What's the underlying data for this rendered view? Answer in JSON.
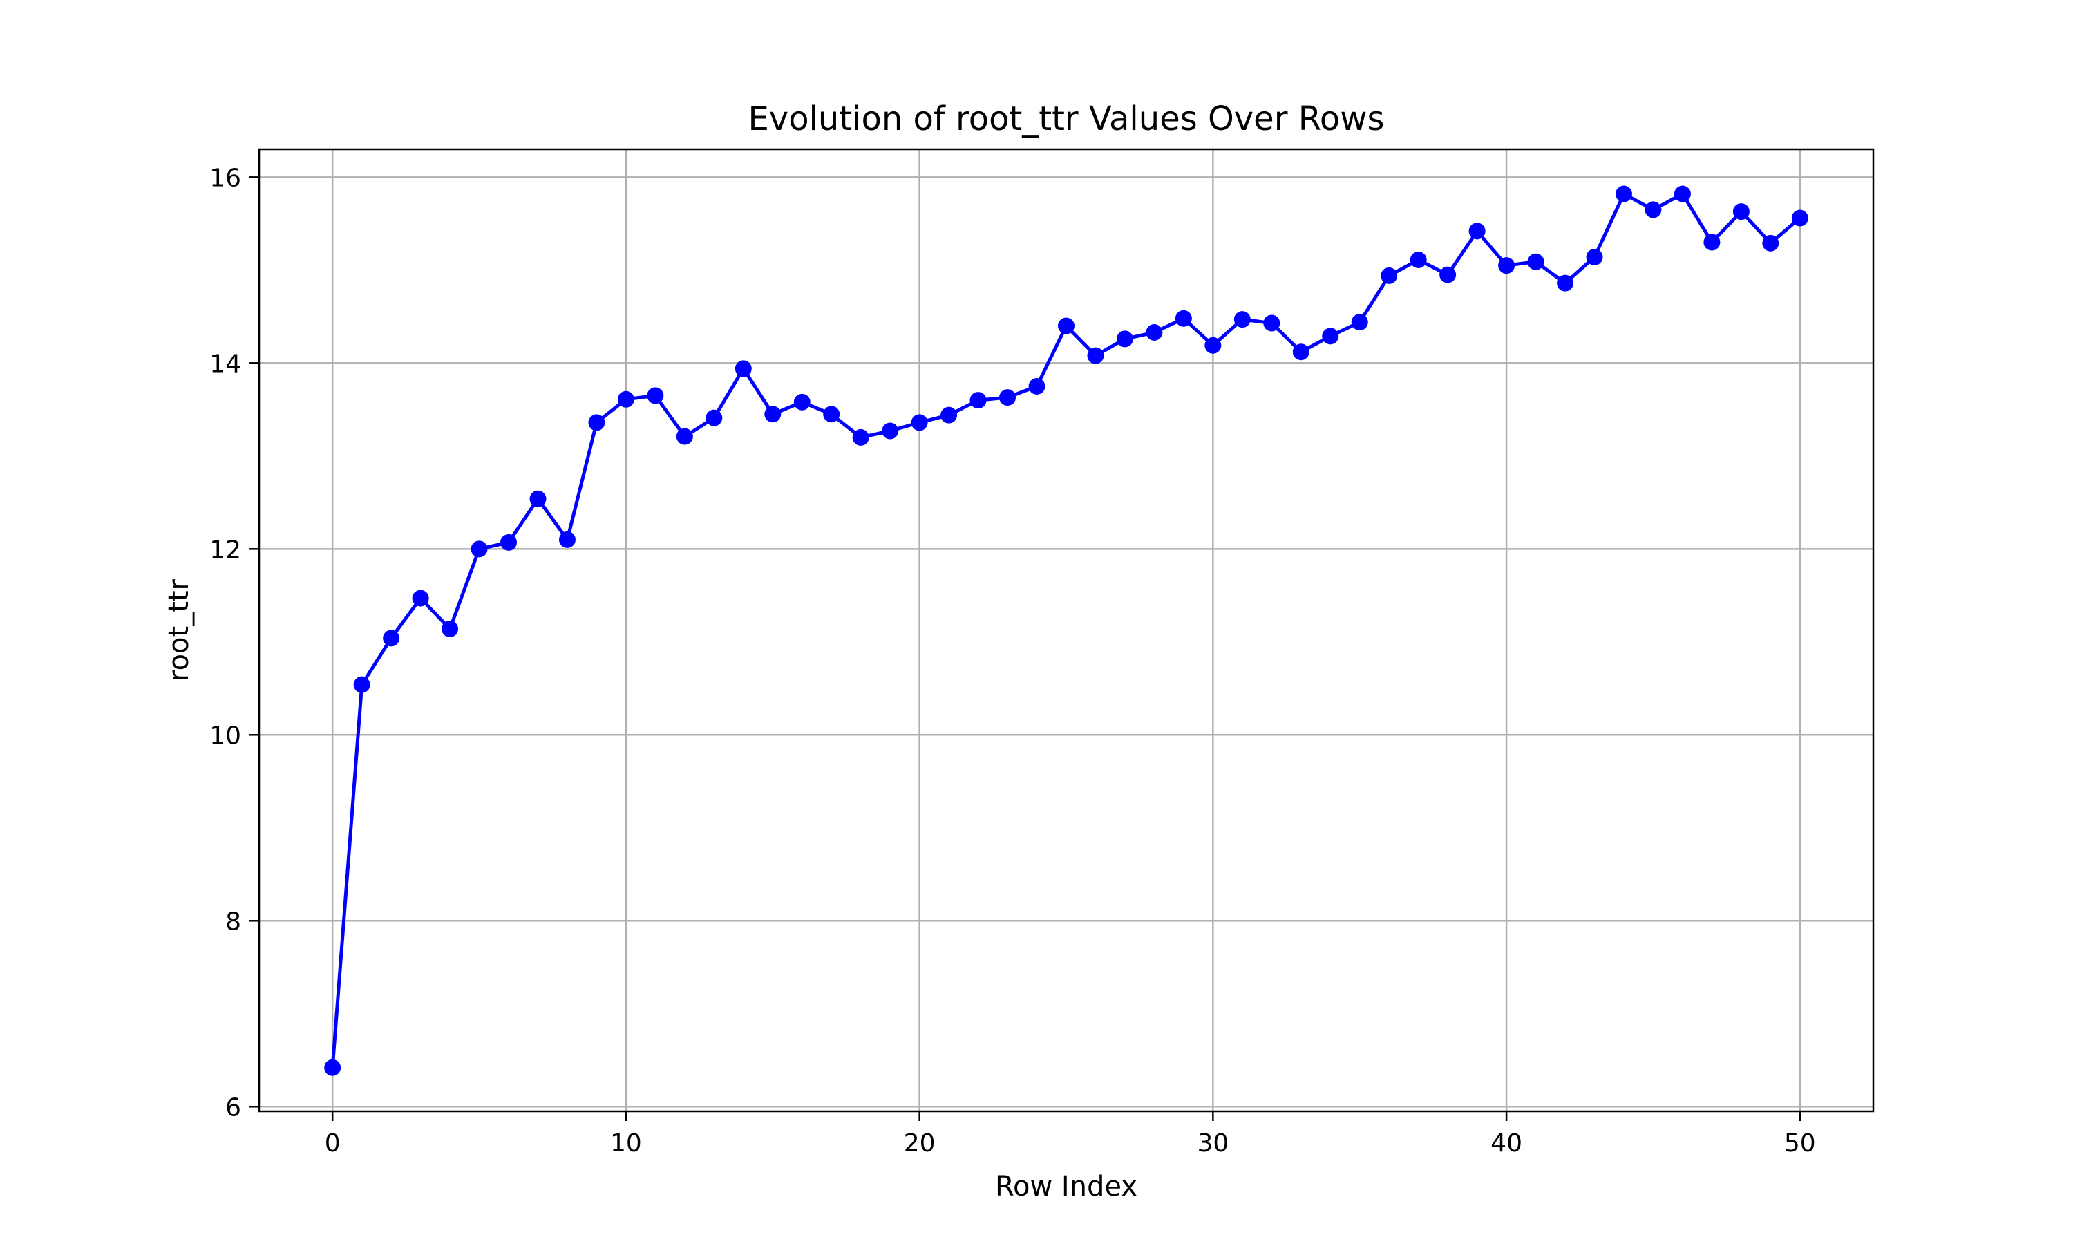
{
  "chart_data": {
    "type": "line",
    "title": "Evolution of root_ttr Values Over Rows",
    "xlabel": "Row Index",
    "ylabel": "root_ttr",
    "xlim": [
      -2.5,
      52.5
    ],
    "ylim": [
      5.95,
      16.3
    ],
    "xticks": [
      0,
      10,
      20,
      30,
      40,
      50
    ],
    "yticks": [
      6,
      8,
      10,
      12,
      14,
      16
    ],
    "grid": true,
    "marker": "circle",
    "color": "#0000ff",
    "x": [
      0,
      1,
      2,
      3,
      4,
      5,
      6,
      7,
      8,
      9,
      10,
      11,
      12,
      13,
      14,
      15,
      16,
      17,
      18,
      19,
      20,
      21,
      22,
      23,
      24,
      25,
      26,
      27,
      28,
      29,
      30,
      31,
      32,
      33,
      34,
      35,
      36,
      37,
      38,
      39,
      40,
      41,
      42,
      43,
      44,
      45,
      46,
      47,
      48,
      49,
      50
    ],
    "y": [
      6.42,
      10.54,
      11.04,
      11.47,
      11.14,
      12.0,
      12.07,
      12.54,
      12.1,
      13.36,
      13.61,
      13.65,
      13.21,
      13.41,
      13.94,
      13.45,
      13.58,
      13.45,
      13.2,
      13.27,
      13.36,
      13.44,
      13.6,
      13.63,
      13.75,
      14.4,
      14.08,
      14.26,
      14.33,
      14.48,
      14.19,
      14.47,
      14.43,
      14.12,
      14.29,
      14.44,
      14.94,
      15.11,
      14.95,
      15.42,
      15.05,
      15.09,
      14.86,
      15.14,
      15.82,
      15.65,
      15.82,
      15.3,
      15.63,
      15.29,
      15.56
    ]
  }
}
